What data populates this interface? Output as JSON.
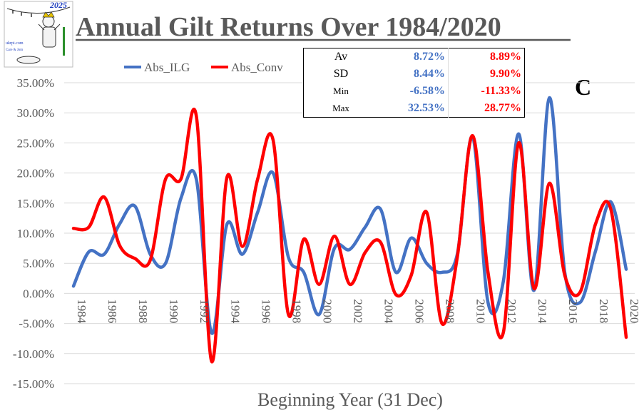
{
  "header": {
    "title": "Annual Gilt Returns Over 1984/2020",
    "logo_year": "2025",
    "logo_site": "ukrpi.com",
    "logo_tag": "Care & Jom"
  },
  "corner_mark": "C",
  "stats": {
    "rows": [
      {
        "label": "Av",
        "ilg": "8.72%",
        "conv": "8.89%"
      },
      {
        "label": "SD",
        "ilg": "8.44%",
        "conv": "9.90%"
      },
      {
        "label": "Min",
        "ilg": "-6.58%",
        "conv": "-11.33%"
      },
      {
        "label": "Max",
        "ilg": "32.53%",
        "conv": "28.77%"
      }
    ]
  },
  "chart_data": {
    "type": "line",
    "title": "Annual Gilt Returns Over 1984/2020",
    "xlabel": "Beginning Year (31 Dec)",
    "ylabel": "",
    "ylim": [
      -15,
      35
    ],
    "y_ticks": [
      "35.00%",
      "30.00%",
      "25.00%",
      "20.00%",
      "15.00%",
      "10.00%",
      "5.00%",
      "0.00%",
      "-5.00%",
      "-10.00%",
      "-15.00%"
    ],
    "x_ticks": [
      "1984",
      "1986",
      "1988",
      "1990",
      "1992",
      "1994",
      "1996",
      "1998",
      "2000",
      "2002",
      "2004",
      "2006",
      "2008",
      "2010",
      "2012",
      "2014",
      "2016",
      "2018",
      "2020"
    ],
    "x": [
      1984,
      1985,
      1986,
      1987,
      1988,
      1989,
      1990,
      1991,
      1992,
      1993,
      1994,
      1995,
      1996,
      1997,
      1998,
      1999,
      2000,
      2001,
      2002,
      2003,
      2004,
      2005,
      2006,
      2007,
      2008,
      2009,
      2010,
      2011,
      2012,
      2013,
      2014,
      2015,
      2016,
      2017,
      2018,
      2019,
      2020
    ],
    "grid": true,
    "legend_position": "top-left",
    "series": [
      {
        "name": "Abs_ILG",
        "color": "#4472c4",
        "values": [
          1.2,
          6.9,
          6.5,
          11.5,
          14.5,
          6.5,
          5.0,
          15.8,
          19.0,
          -6.6,
          11.5,
          6.5,
          13.5,
          20.0,
          6.0,
          3.5,
          -3.5,
          7.5,
          7.3,
          11.0,
          14.0,
          3.5,
          9.2,
          5.0,
          3.5,
          6.5,
          26.0,
          -1.5,
          2.0,
          26.5,
          0.5,
          32.5,
          3.5,
          -1.5,
          7.0,
          15.2,
          4.0
        ]
      },
      {
        "name": "Abs_Conv",
        "color": "#ff0000",
        "values": [
          10.8,
          11.0,
          16.0,
          8.0,
          5.8,
          5.5,
          19.0,
          19.0,
          29.5,
          -11.3,
          19.3,
          7.8,
          19.0,
          25.5,
          -3.5,
          9.0,
          1.5,
          9.5,
          1.5,
          6.8,
          8.5,
          -0.2,
          3.0,
          13.5,
          -5.0,
          6.0,
          26.2,
          3.5,
          -6.5,
          25.0,
          0.8,
          18.3,
          3.0,
          0.2,
          11.5,
          14.0,
          -7.3
        ]
      }
    ]
  }
}
